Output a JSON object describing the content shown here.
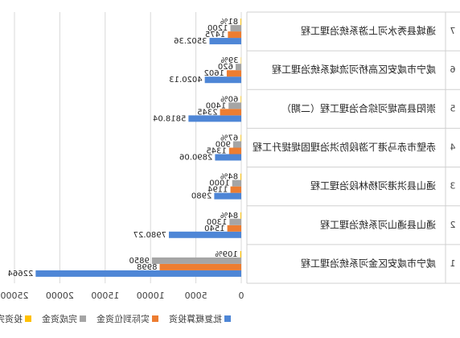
{
  "chart_data": {
    "type": "bar",
    "orientation": "horizontal",
    "mirrored": true,
    "category_numbers": [
      "1",
      "2",
      "3",
      "4",
      "5",
      "6",
      "7"
    ],
    "categories": [
      "咸宁市咸安区金河系统治理工程",
      "通山县通山河系统治理工程",
      "通山县洪港河杨林段治理工程",
      "赤壁市赤马港下游段防洪治理固堤提升工程",
      "崇阳县高堤河综合治理工程（二期）",
      "咸宁市咸安区高桥河流域系统治理工程",
      "通城县秀水河上游系统治理工程"
    ],
    "series": [
      {
        "name": "批复概算投资",
        "color": "#4e86d6",
        "values": [
          22664,
          7980.27,
          2980,
          2890.06,
          5818.04,
          4020.13,
          3502.36
        ],
        "value_labels": [
          "22664",
          "7980.27",
          "2980",
          "2890.06",
          "5818.04",
          "4020.13",
          "3502.36"
        ]
      },
      {
        "name": "实际到位资金",
        "color": "#ed7d31",
        "values": [
          8998,
          1540,
          1194,
          1345,
          2345,
          1602,
          1475
        ]
      },
      {
        "name": "完成资金",
        "color": "#a5a5a5",
        "values": [
          9850,
          1300,
          1000,
          900,
          1400,
          620,
          1200
        ]
      },
      {
        "name": "投资完成率",
        "color": "#ffc000",
        "values": [
          109,
          84,
          84,
          67,
          60,
          39,
          81
        ],
        "value_labels": [
          "109%",
          "84%",
          "84%",
          "67%",
          "60%",
          "39%",
          "81%"
        ]
      }
    ],
    "xlim": [
      0,
      25000
    ],
    "xticks": [
      0,
      5000,
      10000,
      15000,
      20000,
      25000
    ],
    "grid": true,
    "legend": "bottom"
  }
}
